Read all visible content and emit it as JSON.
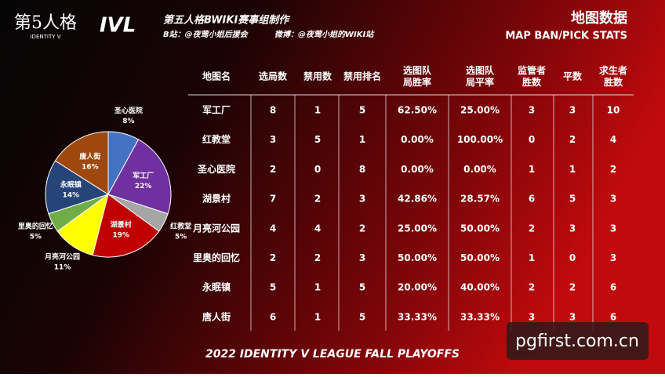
{
  "header": {
    "logo": "第5人格",
    "logo_sub": "IDENTITY V",
    "league_logo": "IVL",
    "credit": "第五人格BWIKI赛事组制作",
    "bilibili": "B站：@夜莺小姐后援会",
    "weibo": "微博：@夜莺小姐的WIKI站",
    "title": "地图数据",
    "subtitle": "MAP BAN/PICK STATS"
  },
  "chart_data": {
    "type": "pie",
    "categories": [
      "圣心医院",
      "军工厂",
      "红教堂",
      "湖景村",
      "月亮河公园",
      "里奥的回忆",
      "永眠镇",
      "唐人街"
    ],
    "values": [
      8,
      22,
      5,
      19,
      11,
      5,
      14,
      16
    ],
    "value_labels": [
      "8%",
      "22%",
      "5%",
      "19%",
      "11%",
      "5%",
      "14%",
      "16%"
    ],
    "colors": [
      "#4472c4",
      "#7030a0",
      "#a5a5a5",
      "#c00000",
      "#ffff00",
      "#70ad47",
      "#264478",
      "#9e480e"
    ]
  },
  "table": {
    "header": [
      [
        "地图名"
      ],
      [
        "选局数"
      ],
      [
        "禁用数"
      ],
      [
        "禁用排名"
      ],
      [
        "选图队",
        "局胜率"
      ],
      [
        "选图队",
        "局平率"
      ],
      [
        "监管者",
        "胜数"
      ],
      [
        "平数"
      ],
      [
        "求生者",
        "胜数"
      ]
    ],
    "rows": [
      [
        "军工厂",
        "8",
        "1",
        "5",
        "62.50%",
        "25.00%",
        "3",
        "3",
        "10"
      ],
      [
        "红教堂",
        "3",
        "5",
        "1",
        "0.00%",
        "100.00%",
        "0",
        "2",
        "4"
      ],
      [
        "圣心医院",
        "2",
        "0",
        "8",
        "0.00%",
        "0.00%",
        "1",
        "1",
        "2"
      ],
      [
        "湖景村",
        "7",
        "2",
        "3",
        "42.86%",
        "28.57%",
        "6",
        "5",
        "3"
      ],
      [
        "月亮河公园",
        "4",
        "4",
        "2",
        "25.00%",
        "50.00%",
        "2",
        "3",
        "3"
      ],
      [
        "里奥的回忆",
        "2",
        "2",
        "3",
        "50.00%",
        "50.00%",
        "1",
        "0",
        "3"
      ],
      [
        "永眠镇",
        "5",
        "1",
        "5",
        "20.00%",
        "40.00%",
        "2",
        "2",
        "6"
      ],
      [
        "唐人街",
        "6",
        "1",
        "5",
        "33.33%",
        "33.33%",
        "3",
        "3",
        "6"
      ]
    ]
  },
  "footer": "2022 IDENTITY V LEAGUE FALL PLAYOFFS",
  "watermark": "pgfirst.com.cn"
}
